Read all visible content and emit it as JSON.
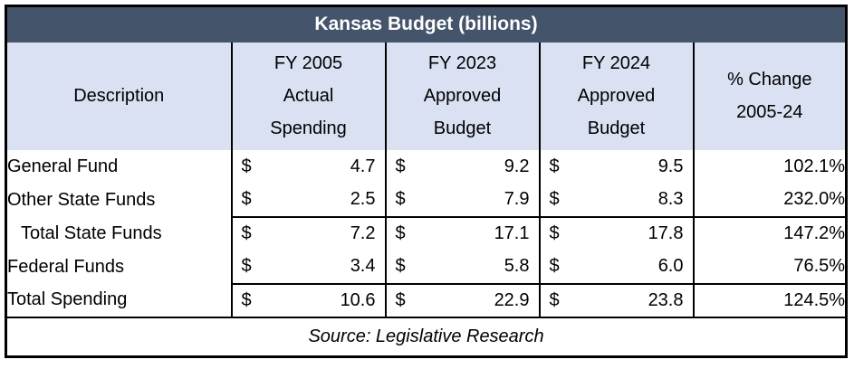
{
  "title": "Kansas Budget (billions)",
  "header": {
    "description": "Description",
    "fy2005": "FY 2005\nActual\nSpending",
    "fy2023": "FY 2023\nApproved\nBudget",
    "fy2024": "FY 2024\nApproved\nBudget",
    "pct_change": "% Change\n2005-24"
  },
  "currency_symbol": "$",
  "rows": [
    {
      "label": "General Fund",
      "fy2005": "4.7",
      "fy2023": "9.2",
      "fy2024": "9.5",
      "pct": "102.1%"
    },
    {
      "label": "Other State Funds",
      "fy2005": "2.5",
      "fy2023": "7.9",
      "fy2024": "8.3",
      "pct": "232.0%"
    },
    {
      "label": "Total State Funds",
      "fy2005": "7.2",
      "fy2023": "17.1",
      "fy2024": "17.8",
      "pct": "147.2%"
    },
    {
      "label": "Federal Funds",
      "fy2005": "3.4",
      "fy2023": "5.8",
      "fy2024": "6.0",
      "pct": "76.5%"
    },
    {
      "label": "Total Spending",
      "fy2005": "10.6",
      "fy2023": "22.9",
      "fy2024": "23.8",
      "pct": "124.5%"
    }
  ],
  "footer": {
    "source": "Source: Legislative Research"
  },
  "colors": {
    "title_bg": "#44546A",
    "title_text": "#FFFFFF",
    "header_bg": "#D9E1F2",
    "grid_border": "#000000",
    "body_text": "#000000"
  },
  "chart_data": {
    "type": "table",
    "title": "Kansas Budget (billions)",
    "columns": [
      "Description",
      "FY 2005 Actual Spending",
      "FY 2023 Approved Budget",
      "FY 2024 Approved Budget",
      "% Change 2005-24"
    ],
    "rows": [
      [
        "General Fund",
        4.7,
        9.2,
        9.5,
        "102.1%"
      ],
      [
        "Other State Funds",
        2.5,
        7.9,
        8.3,
        "232.0%"
      ],
      [
        "Total State Funds",
        7.2,
        17.1,
        17.8,
        "147.2%"
      ],
      [
        "Federal Funds",
        3.4,
        5.8,
        6.0,
        "76.5%"
      ],
      [
        "Total Spending",
        10.6,
        22.9,
        23.8,
        "124.5%"
      ]
    ],
    "units": "billions USD",
    "source": "Source: Legislative Research"
  }
}
